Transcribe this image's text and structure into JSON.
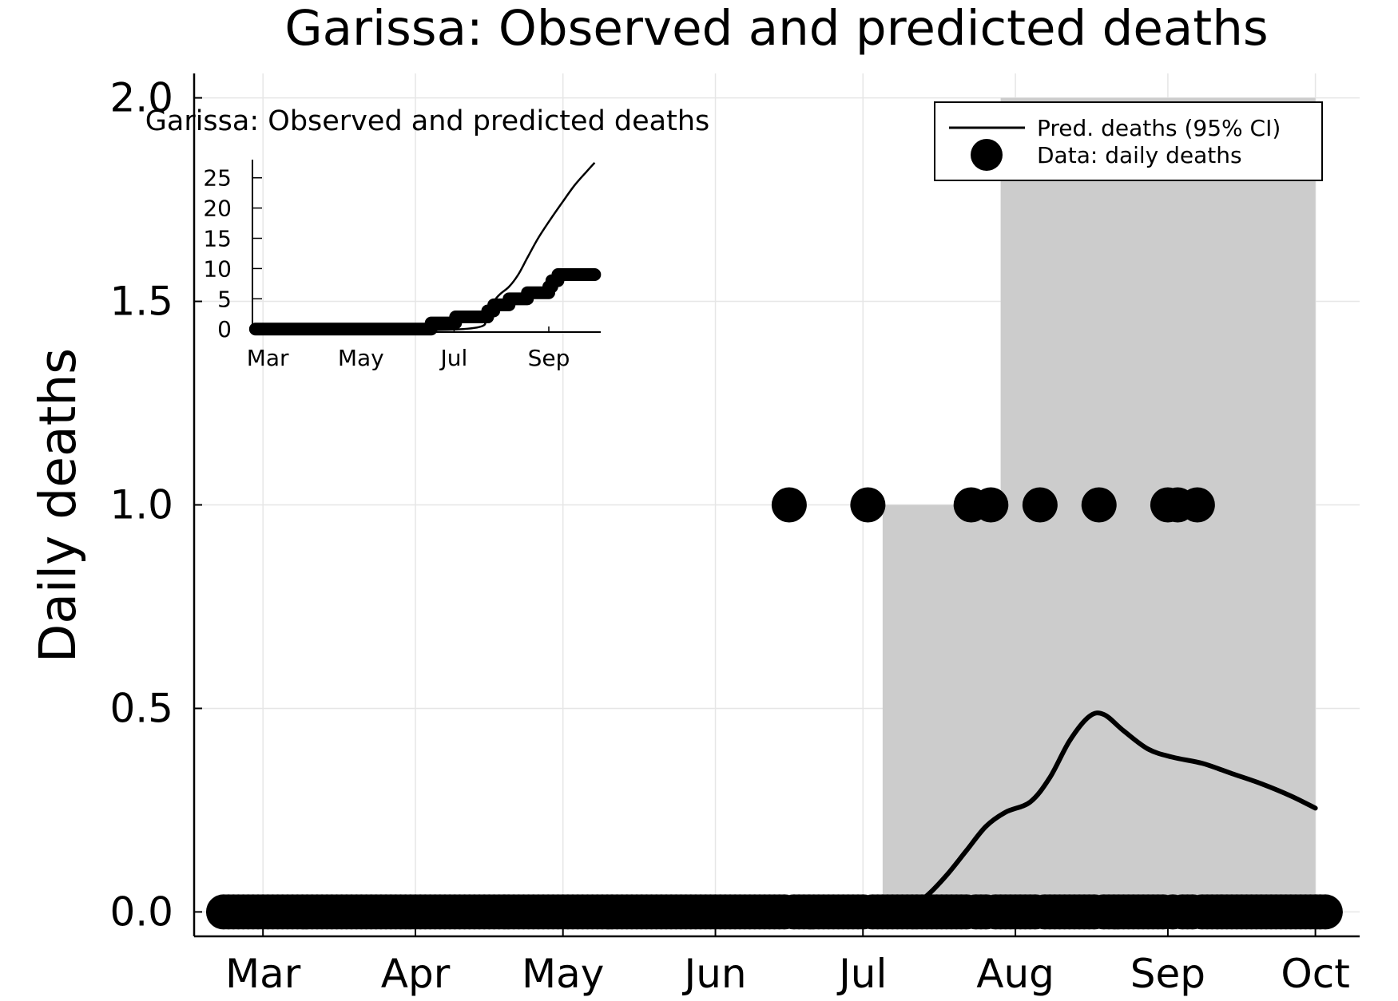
{
  "chart_data": [
    {
      "type": "line",
      "title": "Garissa: Observed and predicted deaths",
      "xlabel": "",
      "ylabel": "Daily deaths",
      "x_ticks": [
        "Mar",
        "Apr",
        "May",
        "Jun",
        "Jul",
        "Aug",
        "Sep",
        "Oct"
      ],
      "x_tick_dates": [
        "2020-03-01",
        "2020-04-01",
        "2020-05-01",
        "2020-06-01",
        "2020-07-01",
        "2020-08-01",
        "2020-09-01",
        "2020-10-01"
      ],
      "xlim": [
        "2020-02-16",
        "2020-10-10"
      ],
      "y_ticks": [
        "0.0",
        "0.5",
        "1.0",
        "1.5",
        "2.0"
      ],
      "ylim": [
        -0.06,
        2.06
      ],
      "grid": true,
      "legend_position": "top-right",
      "legend": [
        "Pred. deaths (95% CI)",
        "Data: daily deaths"
      ],
      "series": [
        {
          "name": "Pred. deaths (95% CI)",
          "kind": "line",
          "points": [
            [
              "2020-07-07",
              0.0
            ],
            [
              "2020-07-10",
              0.01
            ],
            [
              "2020-07-14",
              0.04
            ],
            [
              "2020-07-18",
              0.09
            ],
            [
              "2020-07-22",
              0.15
            ],
            [
              "2020-07-26",
              0.21
            ],
            [
              "2020-07-30",
              0.245
            ],
            [
              "2020-08-04",
              0.27
            ],
            [
              "2020-08-08",
              0.33
            ],
            [
              "2020-08-12",
              0.42
            ],
            [
              "2020-08-16",
              0.48
            ],
            [
              "2020-08-19",
              0.485
            ],
            [
              "2020-08-23",
              0.445
            ],
            [
              "2020-08-28",
              0.4
            ],
            [
              "2020-09-02",
              0.38
            ],
            [
              "2020-09-08",
              0.365
            ],
            [
              "2020-09-14",
              0.34
            ],
            [
              "2020-09-20",
              0.315
            ],
            [
              "2020-09-26",
              0.285
            ],
            [
              "2020-10-01",
              0.255
            ]
          ],
          "ci_band": {
            "color": "#cccccc",
            "start": "2020-07-05",
            "end": "2020-10-01",
            "steps": [
              {
                "from": "2020-07-05",
                "lower": 0,
                "upper": 1
              },
              {
                "from": "2020-07-29",
                "lower": 0,
                "upper": 2
              }
            ]
          }
        },
        {
          "name": "Data: daily deaths",
          "kind": "scatter",
          "zero_run": {
            "start": "2020-02-22",
            "end": "2020-10-03",
            "value": 0
          },
          "points": [
            [
              "2020-06-16",
              1
            ],
            [
              "2020-07-02",
              1
            ],
            [
              "2020-07-23",
              1
            ],
            [
              "2020-07-27",
              1
            ],
            [
              "2020-08-06",
              1
            ],
            [
              "2020-08-18",
              1
            ],
            [
              "2020-09-01",
              1
            ],
            [
              "2020-09-03",
              1
            ],
            [
              "2020-09-07",
              1
            ]
          ]
        }
      ]
    },
    {
      "type": "line",
      "title": "Garissa: Observed and predicted deaths",
      "xlabel": "",
      "ylabel": "",
      "x_ticks": [
        "Mar",
        "May",
        "Jul",
        "Sep"
      ],
      "x_tick_dates": [
        "2020-03-01",
        "2020-05-01",
        "2020-07-01",
        "2020-09-01"
      ],
      "xlim": [
        "2020-02-20",
        "2020-10-05"
      ],
      "y_ticks": [
        "0",
        "5",
        "10",
        "15",
        "20",
        "25"
      ],
      "ylim": [
        -0.5,
        28
      ],
      "grid": false,
      "series": [
        {
          "name": "",
          "kind": "line",
          "points": [
            [
              "2020-02-22",
              0
            ],
            [
              "2020-07-07",
              0
            ],
            [
              "2020-07-20",
              2.5
            ],
            [
              "2020-07-30",
              5.5
            ],
            [
              "2020-08-06",
              7
            ],
            [
              "2020-08-12",
              9
            ],
            [
              "2020-08-18",
              11.8
            ],
            [
              "2020-08-25",
              15
            ],
            [
              "2020-09-02",
              18.1
            ],
            [
              "2020-09-10",
              21
            ],
            [
              "2020-09-18",
              23.8
            ],
            [
              "2020-09-26",
              26.1
            ],
            [
              "2020-10-01",
              27.5
            ]
          ]
        },
        {
          "name": "",
          "kind": "step",
          "end": "2020-10-01",
          "points": [
            [
              "2020-02-22",
              0
            ],
            [
              "2020-06-16",
              1
            ],
            [
              "2020-07-02",
              2
            ],
            [
              "2020-07-23",
              3
            ],
            [
              "2020-07-27",
              4
            ],
            [
              "2020-08-06",
              5
            ],
            [
              "2020-08-18",
              6
            ],
            [
              "2020-09-01",
              7
            ],
            [
              "2020-09-03",
              8
            ],
            [
              "2020-09-07",
              9
            ]
          ]
        }
      ]
    }
  ]
}
